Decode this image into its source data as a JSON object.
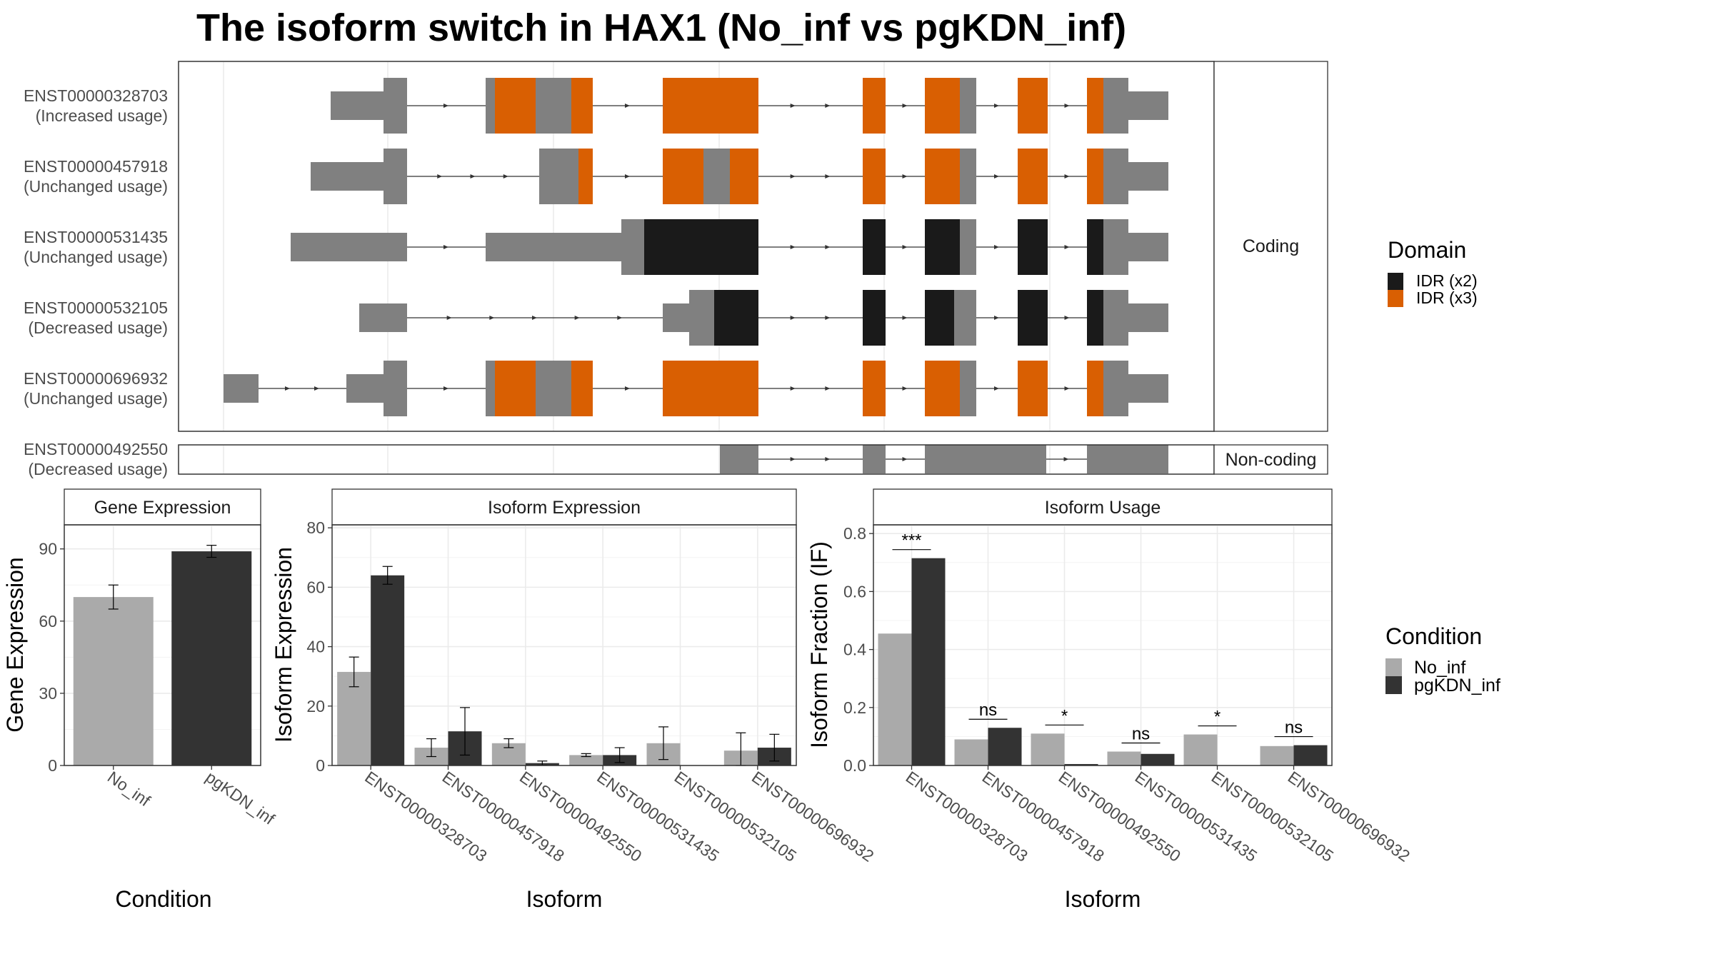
{
  "title": "The isoform switch in HAX1 (No_inf vs pgKDN_inf)",
  "colors": {
    "idr_x2": "#1a1a1a",
    "idr_x3": "#d95f02",
    "exon_gray": "#808080",
    "no_inf": "#aaaaaa",
    "pgkdn_inf": "#333333"
  },
  "structure": {
    "strips": {
      "coding": "Coding",
      "noncoding": "Non-coding"
    },
    "domain_legend": {
      "title": "Domain",
      "items": [
        {
          "label": "IDR (x2)",
          "color": "#1a1a1a"
        },
        {
          "label": "IDR (x3)",
          "color": "#d95f02"
        }
      ]
    },
    "transcripts": [
      {
        "id": "ENST00000328703",
        "status": "(Increased usage)",
        "group": "coding",
        "exons": [
          [
            1,
            3
          ],
          [
            3,
            6
          ],
          [
            6,
            9
          ],
          [
            9,
            14
          ],
          [
            14,
            17
          ],
          [
            17,
            19
          ],
          [
            19,
            21
          ],
          [
            21,
            22
          ],
          [
            22,
            23
          ],
          [
            23,
            29
          ]
        ],
        "segs": [
          [
            1,
            3,
            "u"
          ],
          [
            3,
            6,
            "c"
          ],
          [
            6,
            9,
            "c"
          ],
          [
            9,
            10,
            "c"
          ],
          [
            10,
            10.5,
            "d3"
          ],
          [
            10.5,
            12.5,
            "d3"
          ],
          [
            12.5,
            14,
            "c"
          ],
          [
            14,
            15,
            "d3"
          ],
          [
            15,
            17,
            "d3"
          ],
          [
            17,
            19,
            "d3"
          ],
          [
            19,
            20.5,
            "d3"
          ],
          [
            20.5,
            21,
            "c"
          ],
          [
            21,
            22,
            "d3"
          ],
          [
            22,
            23,
            "d3"
          ],
          [
            23,
            24,
            "c"
          ],
          [
            24,
            29,
            "u"
          ]
        ]
      },
      {
        "id": "ENST00000457918",
        "status": "(Unchanged usage)",
        "group": "coding",
        "exons": [
          [
            2,
            3
          ],
          [
            3,
            6
          ],
          [
            12,
            14
          ],
          [
            14,
            17
          ],
          [
            17,
            19
          ],
          [
            19,
            21
          ],
          [
            21,
            22
          ],
          [
            22,
            23
          ],
          [
            23,
            29
          ]
        ],
        "segs": [
          [
            2,
            3,
            "u"
          ],
          [
            3,
            6,
            "c"
          ],
          [
            12,
            14,
            "c"
          ],
          [
            14,
            15,
            "d3"
          ],
          [
            15,
            17,
            "d3"
          ],
          [
            17,
            18.5,
            "c"
          ],
          [
            18.5,
            19,
            "d3"
          ],
          [
            19,
            20.5,
            "d3"
          ],
          [
            20.5,
            21,
            "c"
          ],
          [
            21,
            22,
            "d3"
          ],
          [
            22,
            23,
            "d3"
          ],
          [
            23,
            24,
            "c"
          ],
          [
            24,
            29,
            "u"
          ]
        ]
      },
      {
        "id": "ENST00000531435",
        "status": "(Unchanged usage)",
        "group": "coding",
        "exons": [
          [
            2.5,
            6
          ],
          [
            9,
            14
          ],
          [
            14,
            16
          ],
          [
            16,
            17
          ],
          [
            17,
            19
          ],
          [
            19,
            21
          ],
          [
            21,
            22
          ],
          [
            22,
            23
          ],
          [
            23,
            29
          ]
        ],
        "segs": [
          [
            2.5,
            6,
            "u"
          ],
          [
            9,
            15,
            "u"
          ],
          [
            15,
            16,
            "c"
          ],
          [
            16,
            17,
            "d2"
          ],
          [
            17,
            19,
            "d2"
          ],
          [
            19,
            21,
            "d2"
          ],
          [
            21,
            21.5,
            "d2"
          ],
          [
            21.5,
            22,
            "c"
          ],
          [
            22,
            23,
            "d2"
          ],
          [
            23,
            24,
            "c"
          ],
          [
            24,
            29,
            "u"
          ]
        ]
      },
      {
        "id": "ENST00000532105",
        "status": "(Decreased usage)",
        "group": "coding",
        "exons": [
          [
            4,
            6
          ],
          [
            16,
            17
          ],
          [
            17,
            19
          ],
          [
            19,
            21
          ],
          [
            21,
            22
          ],
          [
            22,
            23
          ],
          [
            23,
            29
          ]
        ],
        "segs": [
          [
            4,
            6,
            "u"
          ],
          [
            16,
            16.8,
            "u"
          ],
          [
            16.8,
            17,
            "c"
          ],
          [
            17,
            19,
            "d2"
          ],
          [
            19,
            21,
            "d2"
          ],
          [
            21,
            21.5,
            "d2"
          ],
          [
            21.5,
            22,
            "c"
          ],
          [
            22,
            23,
            "d2"
          ],
          [
            23,
            24,
            "c"
          ],
          [
            24,
            29,
            "u"
          ]
        ]
      },
      {
        "id": "ENST00000696932",
        "status": "(Unchanged usage)",
        "group": "coding",
        "exons": [
          [
            0,
            0.5
          ],
          [
            1,
            3
          ],
          [
            3,
            6
          ],
          [
            6,
            9
          ],
          [
            9,
            14
          ],
          [
            14,
            17
          ],
          [
            17,
            19
          ],
          [
            19,
            21
          ],
          [
            21,
            22
          ],
          [
            22,
            23
          ],
          [
            23,
            29
          ]
        ],
        "segs": [
          [
            0,
            0.5,
            "u"
          ],
          [
            1,
            3,
            "u"
          ],
          [
            3,
            6,
            "c"
          ],
          [
            6,
            9,
            "c"
          ],
          [
            9,
            10,
            "c"
          ],
          [
            10,
            10.5,
            "d3"
          ],
          [
            10.5,
            12.5,
            "d3"
          ],
          [
            12.5,
            14,
            "c"
          ],
          [
            14,
            15,
            "d3"
          ],
          [
            15,
            17,
            "d3"
          ],
          [
            17,
            19,
            "d3"
          ],
          [
            19,
            20.5,
            "d3"
          ],
          [
            20.5,
            21,
            "c"
          ],
          [
            21,
            22,
            "d3"
          ],
          [
            22,
            23,
            "d3"
          ],
          [
            23,
            24,
            "c"
          ],
          [
            24,
            29,
            "u"
          ]
        ]
      },
      {
        "id": "ENST00000492550",
        "status": "(Decreased usage)",
        "group": "noncoding",
        "exons": [
          [
            17,
            18
          ],
          [
            18,
            19
          ],
          [
            19,
            21
          ],
          [
            21,
            22
          ],
          [
            22,
            23
          ],
          [
            23,
            24
          ],
          [
            24,
            29
          ]
        ],
        "segs": [
          [
            17,
            18,
            "n"
          ],
          [
            18,
            19,
            "n"
          ],
          [
            19,
            21,
            "n"
          ],
          [
            21,
            22,
            "n"
          ],
          [
            22,
            23,
            "n"
          ],
          [
            23,
            24,
            "n"
          ],
          [
            24,
            29,
            "n"
          ]
        ]
      }
    ]
  },
  "chart_data": [
    {
      "type": "bar",
      "title": "Gene Expression",
      "categories": [
        "No_inf",
        "pgKDN_inf"
      ],
      "values": [
        70,
        89
      ],
      "errors": [
        5,
        2.5
      ],
      "xlabel": "Condition",
      "ylabel": "Gene Expression",
      "ylim": [
        0,
        100
      ],
      "yticks": [
        0,
        30,
        60,
        90
      ]
    },
    {
      "type": "bar",
      "title": "Isoform Expression",
      "categories": [
        "ENST00000328703",
        "ENST00000457918",
        "ENST00000492550",
        "ENST00000531435",
        "ENST00000532105",
        "ENST00000696932"
      ],
      "series": [
        {
          "name": "No_inf",
          "values": [
            31.5,
            6,
            7.5,
            3.5,
            7.5,
            5
          ],
          "errors": [
            5,
            3,
            1.5,
            0.5,
            5.5,
            6
          ]
        },
        {
          "name": "pgKDN_inf",
          "values": [
            64,
            11.5,
            0.8,
            3.5,
            0,
            6
          ],
          "errors": [
            3,
            8,
            0.7,
            2.5,
            0,
            4.5
          ]
        }
      ],
      "xlabel": "Isoform",
      "ylabel": "Isoform Expression",
      "ylim": [
        0,
        81
      ],
      "yticks": [
        0,
        20,
        40,
        60,
        80
      ]
    },
    {
      "type": "bar",
      "title": "Isoform Usage",
      "categories": [
        "ENST00000328703",
        "ENST00000457918",
        "ENST00000492550",
        "ENST00000531435",
        "ENST00000532105",
        "ENST00000696932"
      ],
      "series": [
        {
          "name": "No_inf",
          "values": [
            0.455,
            0.09,
            0.11,
            0.048,
            0.107,
            0.067
          ]
        },
        {
          "name": "pgKDN_inf",
          "values": [
            0.715,
            0.13,
            0.005,
            0.04,
            0,
            0.07
          ]
        }
      ],
      "significance": [
        "***",
        "ns",
        "*",
        "ns",
        "*",
        "ns"
      ],
      "xlabel": "Isoform",
      "ylabel": "Isoform Fraction (IF)",
      "ylim": [
        0,
        0.83
      ],
      "yticks": [
        0.0,
        0.2,
        0.4,
        0.6,
        0.8
      ]
    }
  ],
  "condition_legend": {
    "title": "Condition",
    "items": [
      {
        "label": "No_inf",
        "color": "#aaaaaa"
      },
      {
        "label": "pgKDN_inf",
        "color": "#333333"
      }
    ]
  }
}
